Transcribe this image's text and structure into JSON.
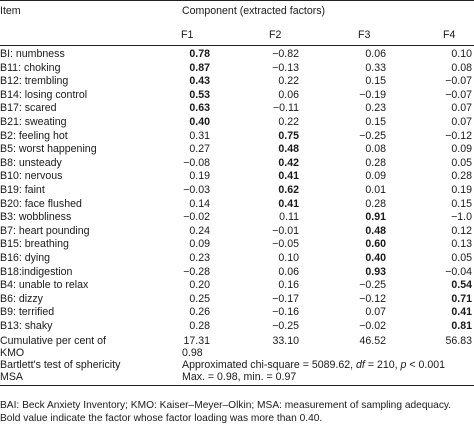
{
  "header": {
    "item": "Item",
    "group": "Component (extracted factors)",
    "factors": [
      "F1",
      "F2",
      "F3",
      "F4"
    ]
  },
  "rows": [
    {
      "item": "BI: numbness",
      "values": [
        "0.78",
        "−0.82",
        "0.06",
        "0.10"
      ],
      "bold": [
        true,
        false,
        false,
        false
      ]
    },
    {
      "item": "B11: choking",
      "values": [
        "0.87",
        "−0.13",
        "0.33",
        "0.08"
      ],
      "bold": [
        true,
        false,
        false,
        false
      ]
    },
    {
      "item": "B12: trembling",
      "values": [
        "0.43",
        "0.22",
        "0.15",
        "−0.07"
      ],
      "bold": [
        true,
        false,
        false,
        false
      ]
    },
    {
      "item": "B14: losing control",
      "values": [
        "0.53",
        "0.06",
        "−0.19",
        "−0.07"
      ],
      "bold": [
        true,
        false,
        false,
        false
      ]
    },
    {
      "item": "B17: scared",
      "values": [
        "0.63",
        "−0.11",
        "0.23",
        "0.07"
      ],
      "bold": [
        true,
        false,
        false,
        false
      ]
    },
    {
      "item": "B21: sweating",
      "values": [
        "0.40",
        "0.22",
        "0.15",
        "0.07"
      ],
      "bold": [
        true,
        false,
        false,
        false
      ]
    },
    {
      "item": "B2: feeling hot",
      "values": [
        "0.31",
        "0.75",
        "−0.25",
        "−0.12"
      ],
      "bold": [
        false,
        true,
        false,
        false
      ]
    },
    {
      "item": "B5: worst happening",
      "values": [
        "0.27",
        "0.48",
        "0.08",
        "0.09"
      ],
      "bold": [
        false,
        true,
        false,
        false
      ]
    },
    {
      "item": "B8: unsteady",
      "values": [
        "−0.08",
        "0.42",
        "0.28",
        "0.05"
      ],
      "bold": [
        false,
        true,
        false,
        false
      ]
    },
    {
      "item": "B10: nervous",
      "values": [
        "0.19",
        "0.41",
        "0.09",
        "0.28"
      ],
      "bold": [
        false,
        true,
        false,
        false
      ]
    },
    {
      "item": "B19: faint",
      "values": [
        "−0.03",
        "0.62",
        "0.01",
        "0.19"
      ],
      "bold": [
        false,
        true,
        false,
        false
      ]
    },
    {
      "item": "B20: face flushed",
      "values": [
        "0.14",
        "0.41",
        "0.28",
        "0.15"
      ],
      "bold": [
        false,
        true,
        false,
        false
      ]
    },
    {
      "item": "B3: wobbliness",
      "values": [
        "−0.02",
        "0.11",
        "0.91",
        "−1.0"
      ],
      "bold": [
        false,
        false,
        true,
        false
      ]
    },
    {
      "item": "B7: heart pounding",
      "values": [
        "0.24",
        "−0.01",
        "0.48",
        "0.12"
      ],
      "bold": [
        false,
        false,
        true,
        false
      ]
    },
    {
      "item": "B15: breathing",
      "values": [
        "0.09",
        "−0.05",
        "0.60",
        "0.13"
      ],
      "bold": [
        false,
        false,
        true,
        false
      ]
    },
    {
      "item": "B16: dying",
      "values": [
        "0.23",
        "0.10",
        "0.40",
        "0.05"
      ],
      "bold": [
        false,
        false,
        true,
        false
      ]
    },
    {
      "item": "B18:indigestion",
      "values": [
        "−0.28",
        "0.06",
        "0.93",
        "−0.04"
      ],
      "bold": [
        false,
        false,
        true,
        false
      ]
    },
    {
      "item": "B4: unable to relax",
      "values": [
        "0.20",
        "0.16",
        "−0.25",
        "0.54"
      ],
      "bold": [
        false,
        false,
        false,
        true
      ]
    },
    {
      "item": "B6: dizzy",
      "values": [
        "0.25",
        "−0.17",
        "−0.12",
        "0.71"
      ],
      "bold": [
        false,
        false,
        false,
        true
      ]
    },
    {
      "item": "B9: terrified",
      "values": [
        "0.26",
        "−0.16",
        "0.07",
        "0.41"
      ],
      "bold": [
        false,
        false,
        false,
        true
      ]
    },
    {
      "item": "B13: shaky",
      "values": [
        "0.28",
        "−0.25",
        "−0.02",
        "0.81"
      ],
      "bold": [
        false,
        false,
        false,
        true
      ]
    }
  ],
  "cumulative": {
    "label": "Cumulative per cent of",
    "values": [
      "17.31",
      "33.10",
      "46.52",
      "56.83"
    ]
  },
  "kmo": {
    "label": "KMO",
    "value": "0.98"
  },
  "bartlett": {
    "label": "Bartlett's test of sphericity",
    "value": "Approximated chi-square = 5089.62, df = 210, p < 0.001"
  },
  "msa": {
    "label": "MSA",
    "value": "Max. = 0.98, min. = 0.97"
  },
  "footnotes": [
    "BAI: Beck Anxiety Inventory; KMO: Kaiser–Meyer–Olkin; MSA: measurement of sampling adequacy.",
    "Bold value indicate the factor whose factor loading was more than 0.40."
  ]
}
